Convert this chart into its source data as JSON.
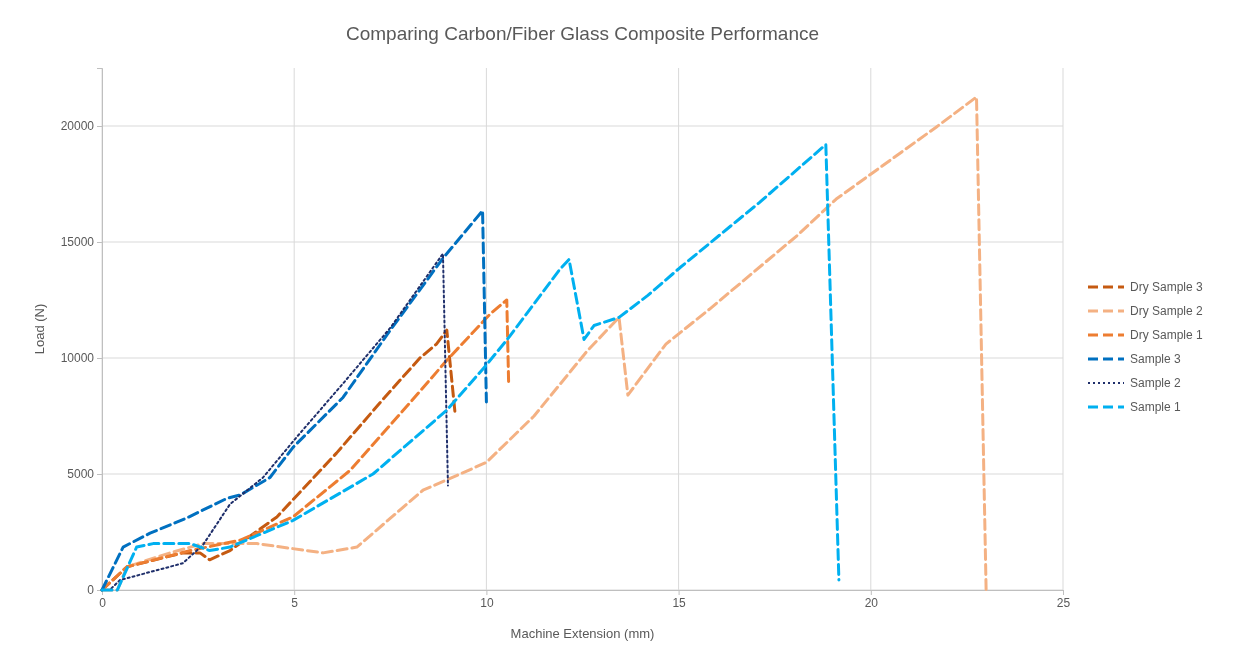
{
  "chart_data": {
    "type": "line",
    "title": "Comparing Carbon/Fiber Glass Composite Performance",
    "xlabel": "Machine Extension (mm)",
    "ylabel": "Load (N)",
    "xlim": [
      0,
      25
    ],
    "xticks": [
      0,
      5,
      10,
      15,
      20,
      25
    ],
    "ylim": [
      0,
      22500
    ],
    "yticks": [
      0,
      5000,
      10000,
      15000,
      20000
    ],
    "grid": true,
    "legend": "right",
    "marker": "none",
    "series": [
      {
        "name": "Dry Sample 3",
        "color": "#c55a11",
        "line_style": "dashed",
        "x": [
          0,
          0.65,
          2.1,
          2.55,
          2.8,
          3.33,
          4.55,
          6.1,
          7.3,
          8.27,
          8.7,
          8.97,
          9.18
        ],
        "values": [
          0,
          1000,
          1600,
          1600,
          1300,
          1700,
          3150,
          5900,
          8200,
          10000,
          10600,
          11200,
          7700
        ]
      },
      {
        "name": "Dry Sample 2",
        "color": "#f4b183",
        "line_style": "dashed",
        "x": [
          0,
          0.4,
          0.65,
          1.77,
          2.63,
          4.03,
          5.75,
          6.63,
          8.35,
          10,
          11.24,
          12.62,
          13.45,
          13.68,
          14.67,
          15.8,
          18.1,
          19.1,
          21.7,
          22.75,
          23
        ],
        "values": [
          0,
          0,
          1000,
          1600,
          2000,
          2000,
          1600,
          1850,
          4300,
          5500,
          7500,
          10300,
          11750,
          8400,
          10600,
          12100,
          15300,
          16850,
          19950,
          21250,
          0
        ]
      },
      {
        "name": "Dry Sample 1",
        "color": "#ed7d31",
        "line_style": "dashed",
        "x": [
          0,
          0.65,
          2.3,
          3.6,
          4.97,
          6.45,
          8,
          8.97,
          10.1,
          10.53,
          10.58
        ],
        "values": [
          0,
          1000,
          1700,
          2150,
          3150,
          5150,
          8050,
          9900,
          11900,
          12500,
          8800
        ]
      },
      {
        "name": "Sample 3",
        "color": "#0070c0",
        "line_style": "dashed",
        "x": [
          0,
          0.55,
          1.25,
          2.2,
          3.25,
          3.6,
          4.37,
          4.97,
          6.27,
          7.5,
          8.87,
          9.9,
          10
        ],
        "values": [
          0,
          1850,
          2450,
          3100,
          3950,
          4100,
          4850,
          6150,
          8300,
          11200,
          14300,
          16350,
          8100
        ]
      },
      {
        "name": "Sample 2",
        "color": "#1f2f6b",
        "line_style": "dotted",
        "x": [
          0,
          0.2,
          0.47,
          2.1,
          2.63,
          3.33,
          4.19,
          5.07,
          6.27,
          7.5,
          8.87,
          9
        ],
        "values": [
          0,
          0,
          430,
          1150,
          1950,
          3700,
          4850,
          6600,
          8900,
          11300,
          14500,
          4500
        ]
      },
      {
        "name": "Sample 1",
        "color": "#00b0f0",
        "line_style": "dashed",
        "x": [
          0,
          0.4,
          0.9,
          1.33,
          2.3,
          2.8,
          3.33,
          4.97,
          7.05,
          8.97,
          10,
          10.59,
          11.9,
          12.15,
          12.54,
          12.8,
          13.45,
          14.2,
          15.04,
          17.1,
          18.83,
          19.17
        ],
        "values": [
          0,
          0,
          1850,
          2000,
          2000,
          1700,
          1850,
          3000,
          5000,
          7750,
          9700,
          10900,
          13800,
          14250,
          10800,
          11400,
          11750,
          12700,
          13900,
          16700,
          19200,
          430
        ]
      }
    ]
  }
}
